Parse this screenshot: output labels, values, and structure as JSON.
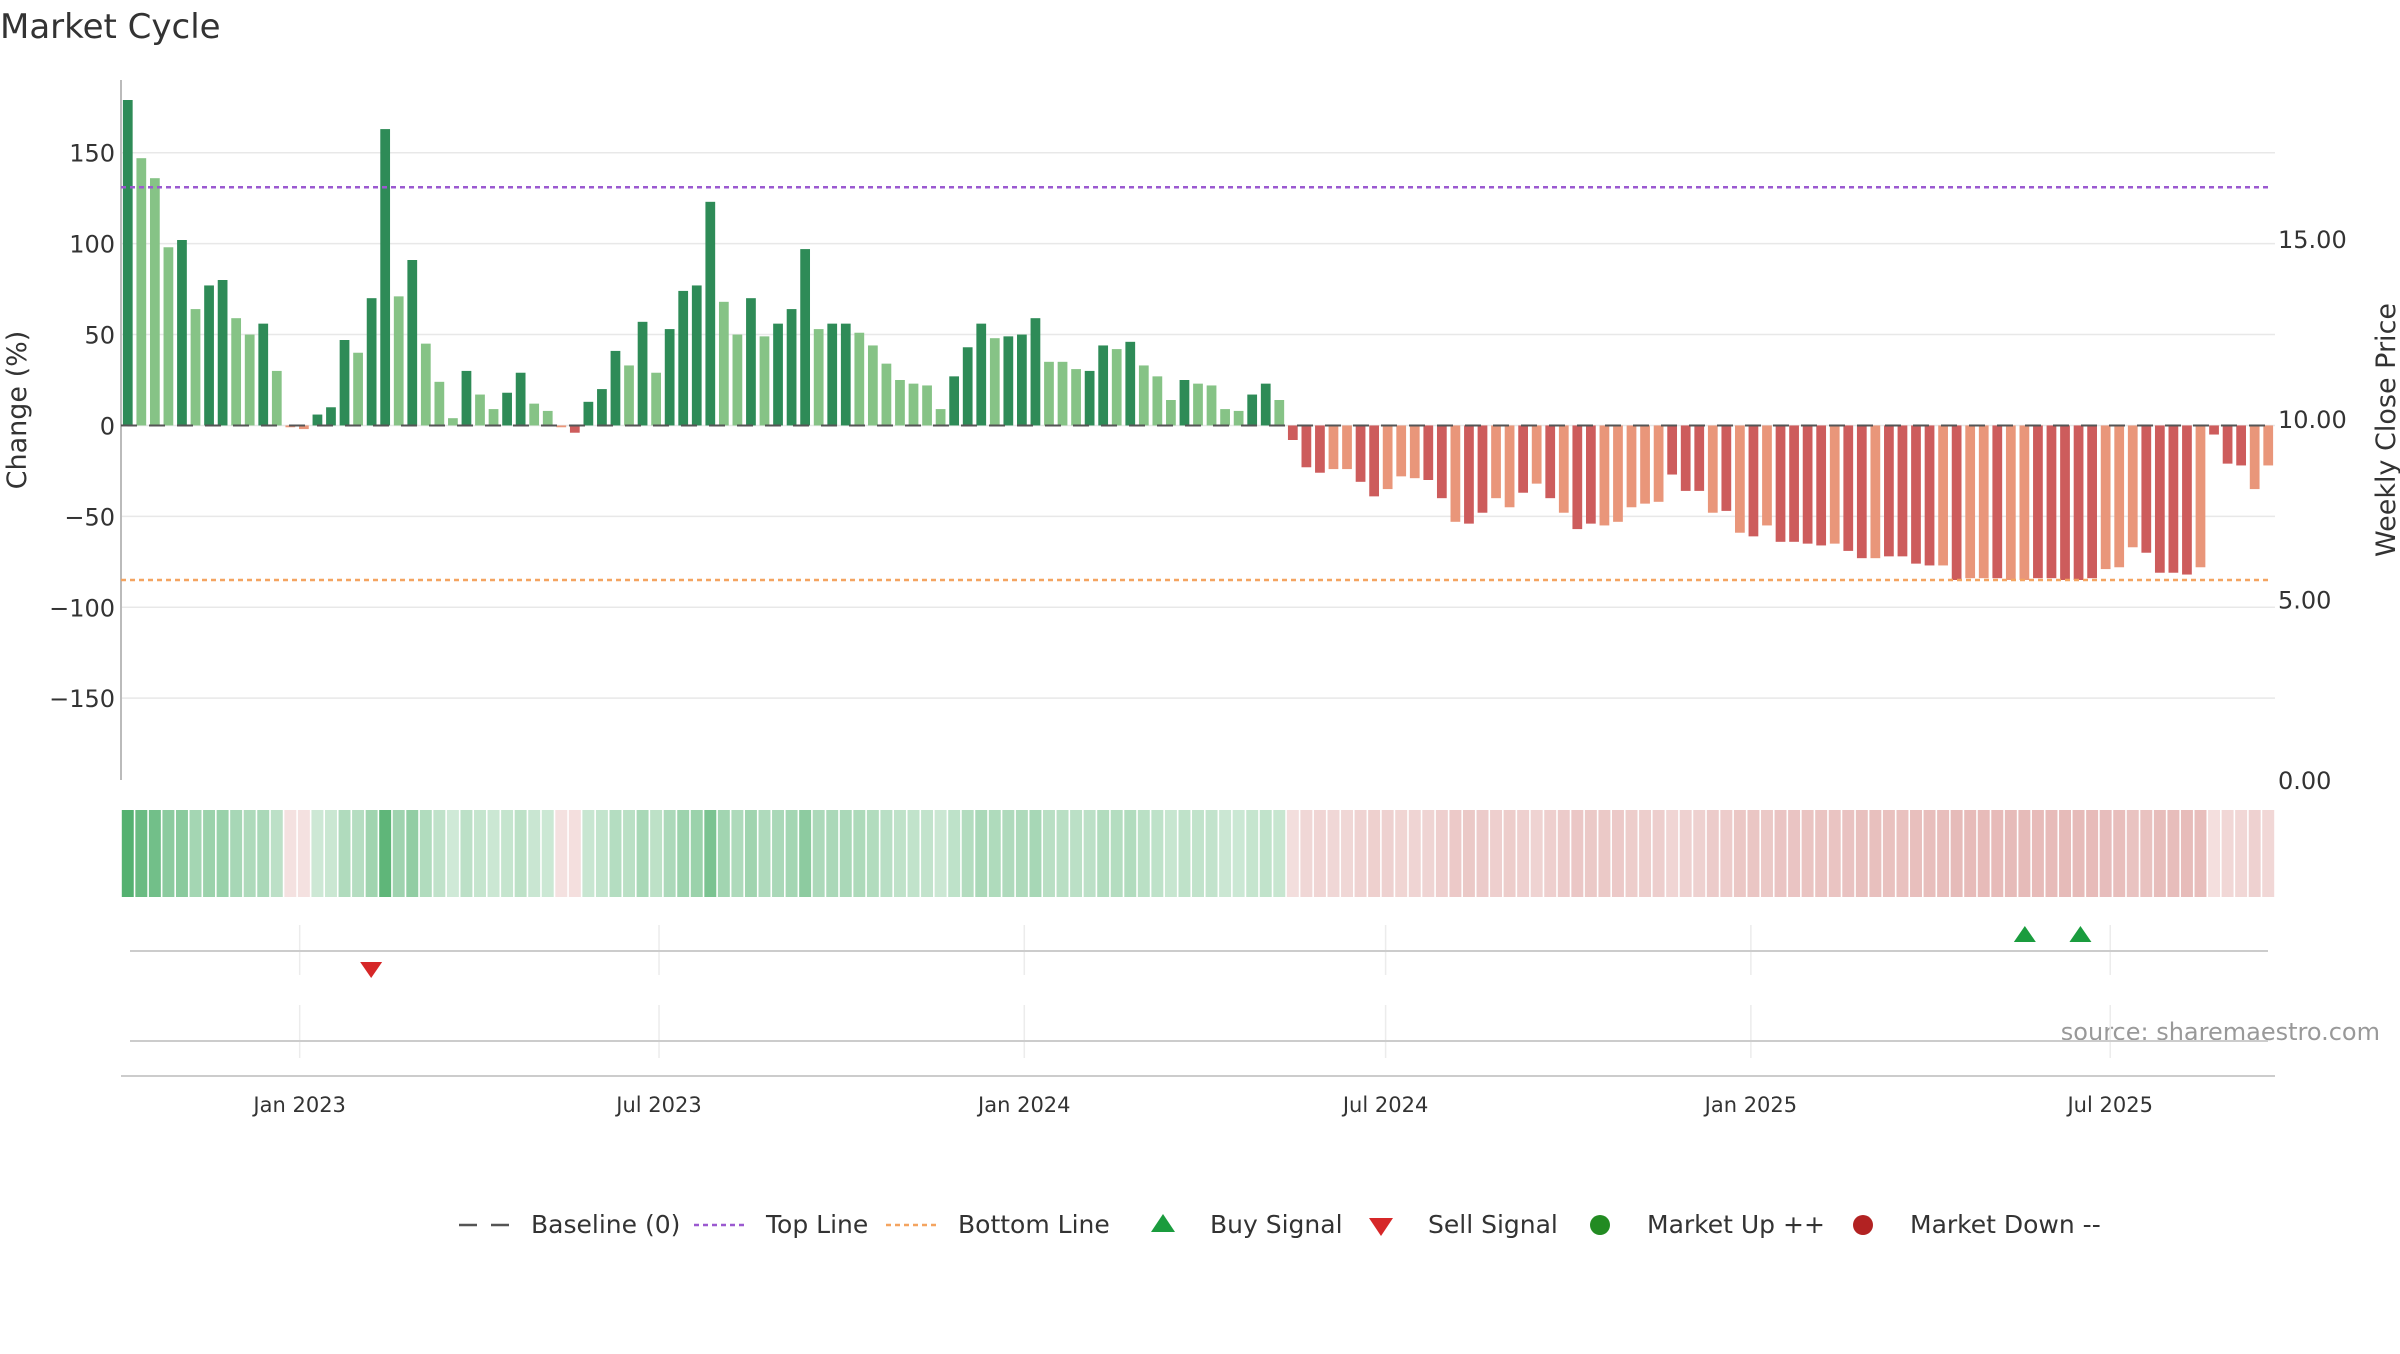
{
  "chart_data": {
    "type": "bar",
    "title": "Market Cycle",
    "ylabel": "Change (%)",
    "y2label": "Weekly Close Price",
    "ylim": [
      -195,
      190
    ],
    "y2lim": [
      0,
      19.4
    ],
    "yticks": [
      150,
      100,
      50,
      0,
      -50,
      -100,
      -150
    ],
    "ytick_labels": [
      "150",
      "100",
      "50",
      "0",
      "−50",
      "−100",
      "−150"
    ],
    "y2ticks": [
      15,
      10,
      5,
      0
    ],
    "y2tick_labels": [
      "15.00",
      "10.00",
      "5.00",
      "0.00"
    ],
    "x_start": "2022-10-03",
    "x_end": "2025-09-22",
    "xticks": [
      "2023-01-01",
      "2023-07-01",
      "2024-01-01",
      "2024-07-01",
      "2025-01-01",
      "2025-07-01"
    ],
    "xtick_labels": [
      "Jan 2023",
      "Jul 2023",
      "Jan 2024",
      "Jul 2024",
      "Jan 2025",
      "Jul 2025"
    ],
    "top_line": 131,
    "bottom_line": -85,
    "baseline": 0,
    "grid": true,
    "values": [
      179,
      147,
      136,
      98,
      102,
      64,
      77,
      80,
      59,
      50,
      56,
      30,
      -1,
      -2,
      6,
      10,
      47,
      40,
      70,
      163,
      71,
      91,
      45,
      24,
      4,
      30,
      17,
      9,
      18,
      29,
      12,
      8,
      -1,
      -4,
      13,
      20,
      41,
      33,
      57,
      29,
      53,
      74,
      77,
      123,
      68,
      50,
      70,
      49,
      56,
      64,
      97,
      53,
      56,
      56,
      51,
      44,
      34,
      25,
      23,
      22,
      9,
      27,
      43,
      56,
      48,
      49,
      50,
      59,
      35,
      35,
      31,
      30,
      44,
      42,
      46,
      33,
      27,
      14,
      25,
      23,
      22,
      9,
      8,
      17,
      23,
      14,
      -8,
      -23,
      -26,
      -24,
      -24,
      -31,
      -39,
      -35,
      -28,
      -29,
      -30,
      -40,
      -53,
      -54,
      -48,
      -40,
      -45,
      -37,
      -32,
      -40,
      -48,
      -57,
      -54,
      -55,
      -53,
      -45,
      -43,
      -42,
      -27,
      -36,
      -36,
      -48,
      -47,
      -59,
      -61,
      -55,
      -64,
      -64,
      -65,
      -66,
      -65,
      -69,
      -73,
      -73,
      -72,
      -72,
      -76,
      -77,
      -77,
      -85,
      -84,
      -84,
      -84,
      -85,
      -85,
      -84,
      -84,
      -85,
      -85,
      -84,
      -79,
      -78,
      -67,
      -70,
      -81,
      -81,
      -82,
      -78,
      -5,
      -21,
      -22,
      -35,
      -22
    ],
    "shades": [
      0,
      1,
      1,
      1,
      0,
      1,
      0,
      0,
      1,
      1,
      0,
      1,
      1,
      1,
      0,
      0,
      0,
      1,
      0,
      0,
      1,
      0,
      1,
      1,
      1,
      0,
      1,
      1,
      0,
      0,
      1,
      1,
      1,
      0,
      0,
      0,
      0,
      1,
      0,
      1,
      0,
      0,
      0,
      0,
      1,
      1,
      0,
      1,
      0,
      0,
      0,
      1,
      0,
      0,
      1,
      1,
      1,
      1,
      1,
      1,
      1,
      0,
      0,
      0,
      1,
      0,
      0,
      0,
      1,
      1,
      1,
      0,
      0,
      1,
      0,
      1,
      1,
      1,
      0,
      1,
      1,
      1,
      1,
      0,
      0,
      1,
      0,
      0,
      0,
      1,
      1,
      0,
      0,
      1,
      1,
      1,
      0,
      0,
      1,
      0,
      0,
      1,
      1,
      0,
      1,
      0,
      1,
      0,
      0,
      1,
      1,
      1,
      1,
      1,
      0,
      0,
      0,
      1,
      0,
      1,
      0,
      1,
      0,
      0,
      0,
      0,
      1,
      0,
      0,
      1,
      0,
      0,
      0,
      0,
      1,
      0,
      1,
      1,
      0,
      1,
      1,
      0,
      0,
      0,
      0,
      0,
      1,
      1,
      1,
      0,
      0,
      0,
      0,
      1,
      0,
      0,
      0,
      1,
      1
    ],
    "colors": {
      "up_dark": "#2e8b57",
      "up_light": "#86c386",
      "down_dark": "#cd5c5c",
      "down_light": "#e9967a",
      "top_line": "#9b59d0",
      "bottom_line": "#f4a460",
      "buy": "#1a9c3e",
      "sell": "#d62728",
      "market_up": "#228b22",
      "market_down": "#b22222"
    },
    "buy_signals": [
      "2025-05-19",
      "2025-06-16"
    ],
    "sell_signals": [
      "2023-02-06"
    ],
    "source": "source: sharemaestro.com",
    "legend": [
      {
        "label": "Baseline (0)",
        "marker": "dash",
        "color": "#555555"
      },
      {
        "label": "Top Line",
        "marker": "dotted",
        "color": "#9b59d0"
      },
      {
        "label": "Bottom Line",
        "marker": "dotted",
        "color": "#f4a460"
      },
      {
        "label": "Buy Signal",
        "marker": "triangle-up",
        "color": "#1a9c3e"
      },
      {
        "label": "Sell Signal",
        "marker": "triangle-down",
        "color": "#d62728"
      },
      {
        "label": "Market Up ++",
        "marker": "circle",
        "color": "#228b22"
      },
      {
        "label": "Market Down --",
        "marker": "circle",
        "color": "#b22222"
      }
    ],
    "legend_position": "bottom"
  }
}
